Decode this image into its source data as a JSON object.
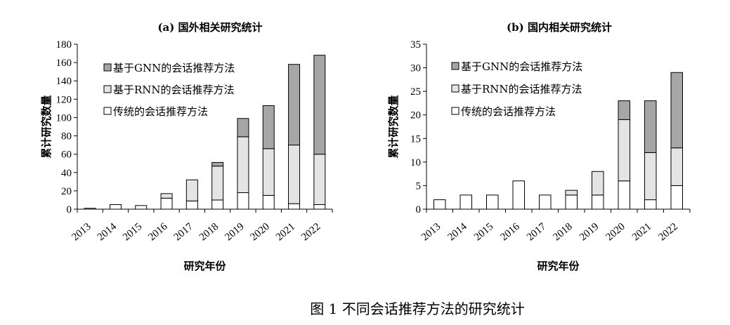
{
  "figure_caption": "图 1 不同会话推荐方法的研究统计",
  "chart_data": [
    {
      "type": "bar",
      "stacked": true,
      "title": "(a) 国外相关研究统计",
      "xlabel": "研究年份",
      "ylabel": "累计研究数量",
      "ylim": [
        0,
        180
      ],
      "yticks": [
        0,
        20,
        40,
        60,
        80,
        100,
        120,
        140,
        160,
        180
      ],
      "categories": [
        "2013",
        "2014",
        "2015",
        "2016",
        "2017",
        "2018",
        "2019",
        "2020",
        "2021",
        "2022"
      ],
      "series": [
        {
          "name": "传统的会话推荐方法",
          "color": "#ffffff",
          "values": [
            1,
            5,
            4,
            12,
            9,
            10,
            18,
            15,
            6,
            5
          ]
        },
        {
          "name": "基于RNN的会话推荐方法",
          "color": "#e4e4e4",
          "values": [
            0,
            0,
            0,
            5,
            23,
            37,
            61,
            51,
            64,
            55
          ]
        },
        {
          "name": "基于GNN的会话推荐方法",
          "color": "#a6a6a6",
          "values": [
            0,
            0,
            0,
            0,
            0,
            4,
            20,
            47,
            88,
            108
          ]
        }
      ],
      "legend_order": [
        "基于GNN的会话推荐方法",
        "基于RNN的会话推荐方法",
        "传统的会话推荐方法"
      ],
      "legend_position": "top-left",
      "grid": false
    },
    {
      "type": "bar",
      "stacked": true,
      "title": "(b) 国内相关研究统计",
      "xlabel": "研究年份",
      "ylabel": "累计研究数量",
      "ylim": [
        0,
        35
      ],
      "yticks": [
        0,
        5,
        10,
        15,
        20,
        25,
        30,
        35
      ],
      "categories": [
        "2013",
        "2014",
        "2015",
        "2016",
        "2017",
        "2018",
        "2019",
        "2020",
        "2021",
        "2022"
      ],
      "series": [
        {
          "name": "传统的会话推荐方法",
          "color": "#ffffff",
          "values": [
            2,
            3,
            3,
            6,
            3,
            3,
            3,
            6,
            2,
            5
          ]
        },
        {
          "name": "基于RNN的会话推荐方法",
          "color": "#e4e4e4",
          "values": [
            0,
            0,
            0,
            0,
            0,
            1,
            5,
            13,
            10,
            8
          ]
        },
        {
          "name": "基于GNN的会话推荐方法",
          "color": "#a6a6a6",
          "values": [
            0,
            0,
            0,
            0,
            0,
            0,
            0,
            4,
            11,
            16
          ]
        }
      ],
      "legend_order": [
        "基于GNN的会话推荐方法",
        "基于RNN的会话推荐方法",
        "传统的会话推荐方法"
      ],
      "legend_position": "top-left",
      "grid": false
    }
  ]
}
